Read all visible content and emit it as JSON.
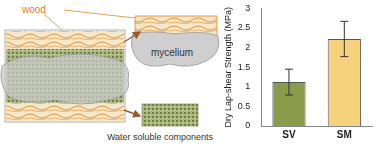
{
  "diagram": {
    "labels": {
      "wood": "wood",
      "mycelium": "mycelium",
      "components": "Water soluble components"
    }
  },
  "chart_data": {
    "type": "bar",
    "y_label": "Dry Lap-shear Strength (MPa)",
    "categories": [
      "SV",
      "SM"
    ],
    "values": [
      1.12,
      2.22
    ],
    "errors": [
      0.33,
      0.45
    ],
    "colors": [
      "#8c9a4c",
      "#f6d27c"
    ],
    "ylim": [
      0,
      3
    ],
    "yticks": [
      0,
      0.5,
      1,
      1.5,
      2,
      2.5,
      3
    ],
    "grid": false
  }
}
